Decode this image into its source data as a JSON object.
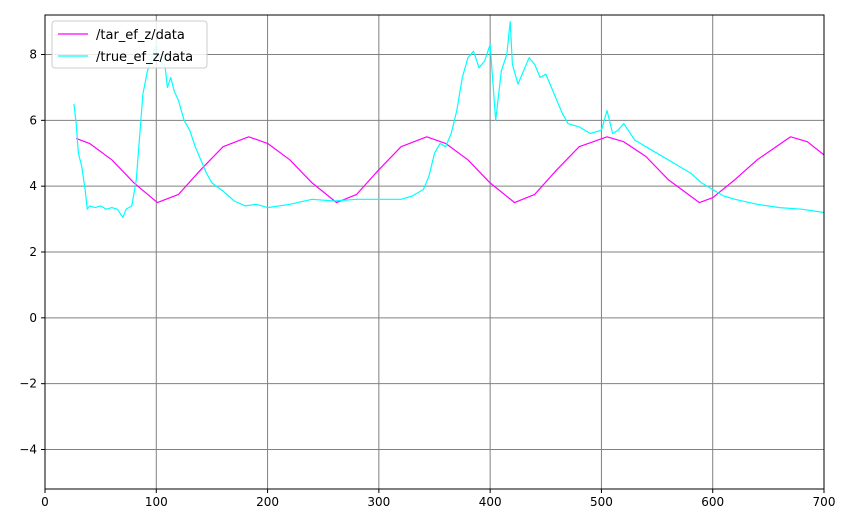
{
  "chart_data": {
    "type": "line",
    "title": "",
    "xlabel": "",
    "ylabel": "",
    "xlim": [
      0,
      700
    ],
    "ylim": [
      -5.2,
      9.2
    ],
    "xticks": [
      0,
      100,
      200,
      300,
      400,
      500,
      600,
      700
    ],
    "yticks": [
      -4,
      -2,
      0,
      2,
      4,
      6,
      8
    ],
    "grid": true,
    "legend_position": "top-left",
    "series": [
      {
        "name": "/tar_ef_z/data",
        "color": "#ff00ff",
        "x": [
          28,
          40,
          60,
          80,
          101,
          120,
          140,
          160,
          183,
          200,
          220,
          240,
          262,
          280,
          300,
          320,
          343,
          360,
          380,
          400,
          422,
          440,
          460,
          480,
          505,
          520,
          540,
          560,
          588,
          600,
          620,
          640,
          670,
          685,
          700
        ],
        "y": [
          5.45,
          5.3,
          4.8,
          4.1,
          3.5,
          3.75,
          4.5,
          5.2,
          5.5,
          5.3,
          4.8,
          4.1,
          3.5,
          3.75,
          4.5,
          5.2,
          5.5,
          5.3,
          4.8,
          4.1,
          3.5,
          3.75,
          4.5,
          5.2,
          5.5,
          5.35,
          4.9,
          4.2,
          3.5,
          3.65,
          4.2,
          4.8,
          5.5,
          5.35,
          4.95
        ]
      },
      {
        "name": "/true_ef_z/data",
        "color": "#00ffff",
        "x": [
          26,
          28,
          30,
          33,
          36,
          38,
          40,
          45,
          50,
          55,
          60,
          65,
          70,
          73,
          78,
          82,
          85,
          88,
          92,
          96,
          100,
          104,
          108,
          110,
          113,
          116,
          120,
          125,
          130,
          135,
          140,
          145,
          150,
          160,
          170,
          180,
          190,
          200,
          220,
          240,
          260,
          280,
          300,
          320,
          330,
          340,
          345,
          350,
          355,
          360,
          365,
          370,
          375,
          380,
          385,
          390,
          395,
          400,
          405,
          410,
          415,
          418,
          420,
          425,
          430,
          435,
          440,
          445,
          450,
          455,
          460,
          465,
          470,
          480,
          490,
          500,
          505,
          510,
          515,
          520,
          530,
          540,
          550,
          560,
          570,
          580,
          590,
          600,
          610,
          620,
          640,
          660,
          680,
          700
        ],
        "y": [
          6.5,
          5.9,
          5.0,
          4.6,
          3.9,
          3.3,
          3.4,
          3.35,
          3.4,
          3.3,
          3.35,
          3.3,
          3.05,
          3.3,
          3.4,
          4.2,
          5.5,
          6.8,
          7.5,
          7.9,
          8.3,
          7.8,
          7.6,
          7.0,
          7.3,
          6.9,
          6.6,
          6.0,
          5.7,
          5.2,
          4.8,
          4.4,
          4.1,
          3.85,
          3.55,
          3.4,
          3.45,
          3.35,
          3.45,
          3.6,
          3.55,
          3.6,
          3.6,
          3.6,
          3.7,
          3.9,
          4.3,
          5.0,
          5.3,
          5.2,
          5.6,
          6.3,
          7.3,
          7.9,
          8.1,
          7.6,
          7.8,
          8.3,
          6.0,
          7.5,
          8.0,
          9.0,
          7.7,
          7.1,
          7.5,
          7.9,
          7.7,
          7.3,
          7.4,
          7.0,
          6.6,
          6.2,
          5.9,
          5.8,
          5.6,
          5.7,
          6.3,
          5.6,
          5.7,
          5.9,
          5.4,
          5.2,
          5.0,
          4.8,
          4.6,
          4.4,
          4.1,
          3.9,
          3.7,
          3.6,
          3.45,
          3.35,
          3.3,
          3.2
        ]
      }
    ]
  }
}
